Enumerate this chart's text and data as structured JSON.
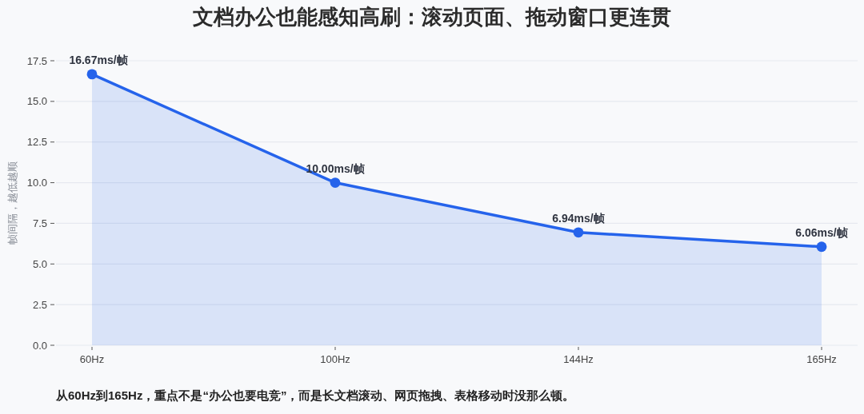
{
  "chart_data": {
    "type": "area",
    "title": "文档办公也能感知高刷：滚动页面、拖动窗口更连贯",
    "ylabel": "帧间隔，越低越顺",
    "categories": [
      "60Hz",
      "100Hz",
      "144Hz",
      "165Hz"
    ],
    "values": [
      16.67,
      10.0,
      6.94,
      6.06
    ],
    "value_labels": [
      "16.67ms/帧",
      "10.00ms/帧",
      "6.94ms/帧",
      "6.06ms/帧"
    ],
    "color": "#2563eb",
    "ylim": [
      0,
      17.5
    ],
    "yticks": [
      {
        "value": 0,
        "label": "0.0"
      },
      {
        "value": 2.5,
        "label": "2.5"
      },
      {
        "value": 5,
        "label": "5.0"
      },
      {
        "value": 7.5,
        "label": "7.5"
      },
      {
        "value": 10,
        "label": "10.0"
      },
      {
        "value": 12.5,
        "label": "12.5"
      },
      {
        "value": 15,
        "label": "15.0"
      },
      {
        "value": 17.5,
        "label": "17.5"
      }
    ],
    "grid": "y",
    "marker": "circle",
    "line_style": "solid",
    "annotations": [
      "从60Hz到165Hz，重点不是“办公也要电竞”，而是长文档滚动、网页拖拽、表格移动时没那么顿。"
    ]
  }
}
